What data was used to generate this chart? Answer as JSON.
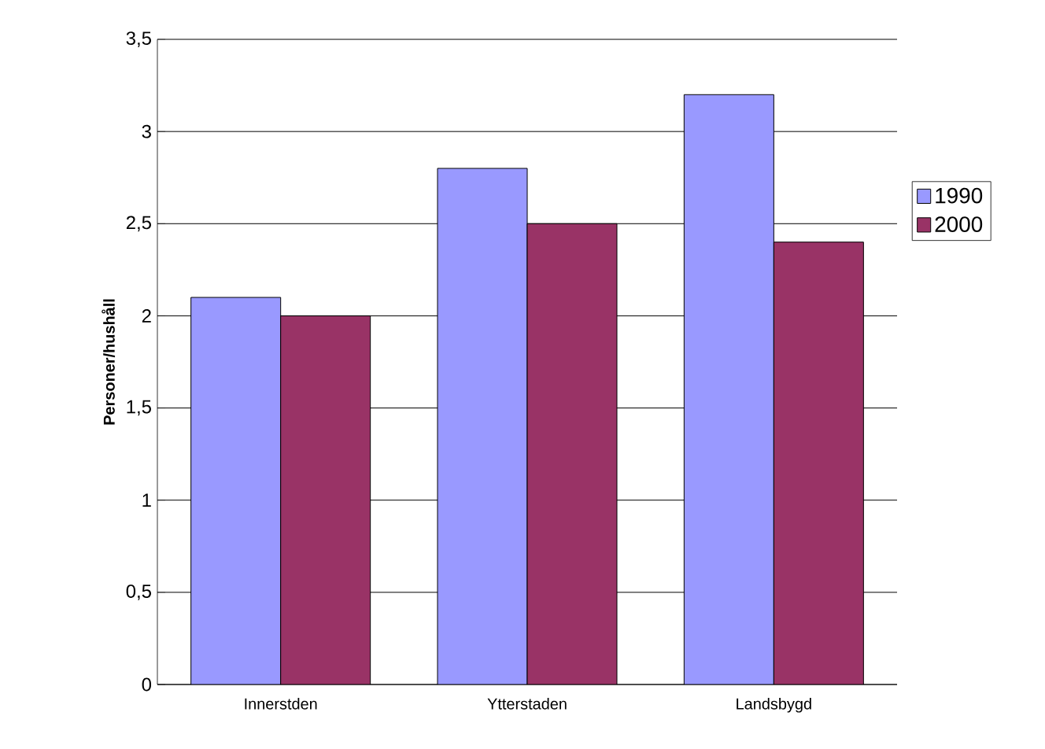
{
  "chart_data": {
    "type": "bar",
    "ylabel": "Personer/hushåll",
    "categories": [
      "Innerstden",
      "Ytterstaden",
      "Landsbygd"
    ],
    "series": [
      {
        "name": "1990",
        "color": "#9999ff",
        "values": [
          2.1,
          2.8,
          3.2
        ]
      },
      {
        "name": "2000",
        "color": "#993366",
        "values": [
          2.0,
          2.5,
          2.4
        ]
      }
    ],
    "ylim": [
      0,
      3.5
    ],
    "yticks": [
      0,
      {
        "value": 0.5,
        "label": "0,5"
      },
      1,
      {
        "value": 1.5,
        "label": "1,5"
      },
      2,
      {
        "value": 2.5,
        "label": "2,5"
      },
      3,
      {
        "value": 3.5,
        "label": "3,5"
      }
    ],
    "grid": "y",
    "legend": "right"
  }
}
